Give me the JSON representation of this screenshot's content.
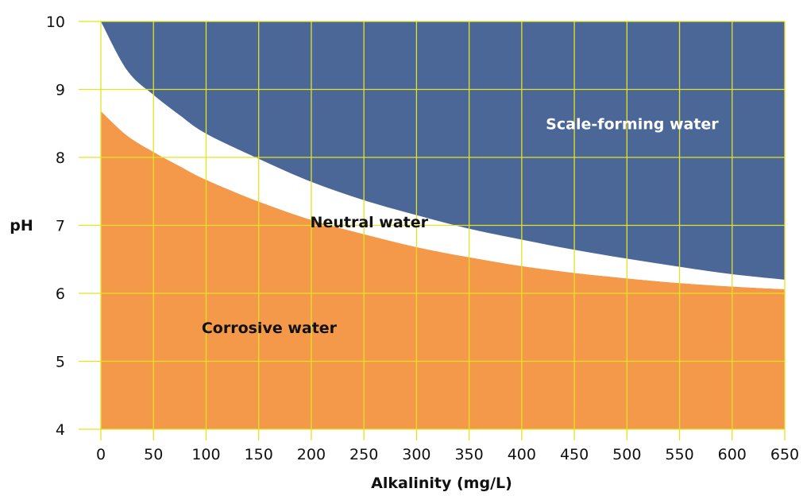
{
  "chart_data": {
    "type": "area",
    "xlabel": "Alkalinity (mg/L)",
    "ylabel": "pH",
    "xlim": [
      0,
      650
    ],
    "ylim": [
      4,
      10
    ],
    "x_ticks": [
      0,
      50,
      100,
      150,
      200,
      250,
      300,
      350,
      400,
      450,
      500,
      550,
      600,
      650
    ],
    "y_ticks": [
      4,
      5,
      6,
      7,
      8,
      9,
      10
    ],
    "grid": true,
    "x": [
      0,
      25,
      50,
      75,
      100,
      150,
      200,
      250,
      300,
      350,
      400,
      450,
      500,
      550,
      600,
      650
    ],
    "series": [
      {
        "name": "Corrosive water",
        "upper": [
          8.68,
          8.32,
          8.08,
          7.87,
          7.67,
          7.35,
          7.08,
          6.87,
          6.68,
          6.53,
          6.4,
          6.3,
          6.22,
          6.15,
          6.1,
          6.06
        ]
      },
      {
        "name": "Neutral water",
        "upper": [
          10.0,
          9.28,
          8.92,
          8.62,
          8.35,
          7.98,
          7.64,
          7.37,
          7.15,
          6.95,
          6.79,
          6.64,
          6.51,
          6.39,
          6.28,
          6.2
        ]
      },
      {
        "name": "Scale-forming water",
        "upper": [
          10,
          10,
          10,
          10,
          10,
          10,
          10,
          10,
          10,
          10,
          10,
          10,
          10,
          10,
          10,
          10
        ]
      }
    ],
    "annotations": [
      {
        "text": "Scale-forming water",
        "x": 505,
        "y": 8.5
      },
      {
        "text": "Neutral water",
        "x": 255,
        "y": 7.05
      },
      {
        "text": "Corrosive water",
        "x": 160,
        "y": 5.5
      }
    ],
    "colors": {
      "corrosive": "#f4994a",
      "neutral": "#ffffff",
      "scale": "#4a6798",
      "grid": "#e3e322",
      "scale_label": "#ffffff",
      "neutral_label": "#111111",
      "corrosive_label": "#111111"
    }
  }
}
